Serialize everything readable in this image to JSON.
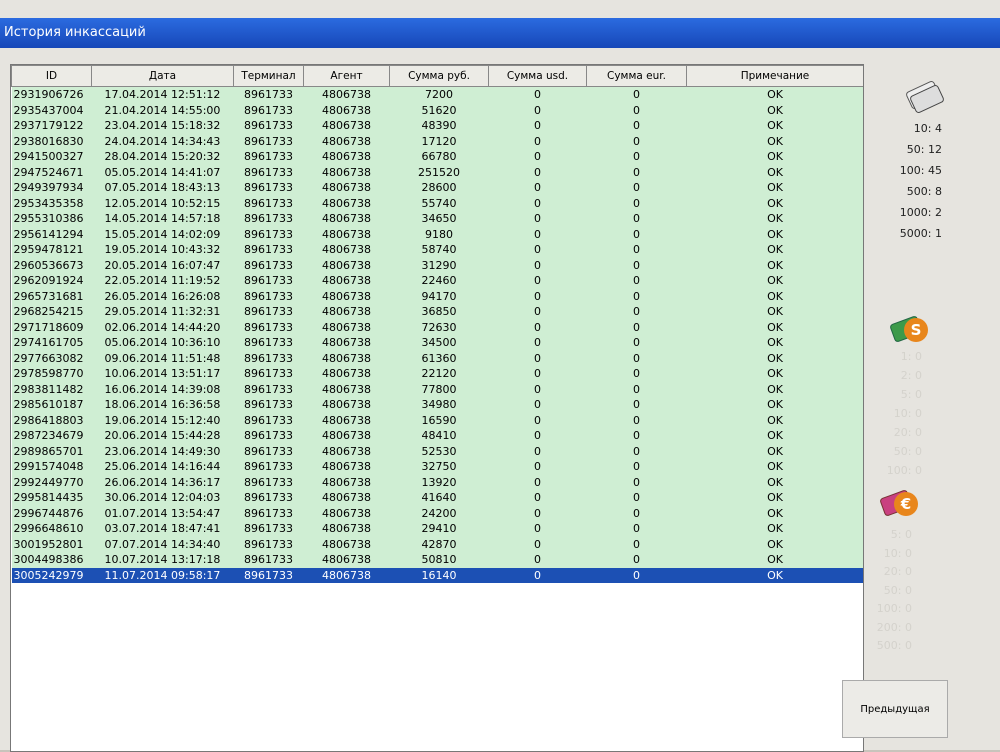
{
  "window": {
    "title": "История инкассаций"
  },
  "table": {
    "headers": [
      "ID",
      "Дата",
      "Терминал",
      "Агент",
      "Сумма руб.",
      "Сумма usd.",
      "Сумма eur.",
      "Примечание"
    ],
    "rows": [
      [
        "2931906726",
        "17.04.2014 12:51:12",
        "8961733",
        "4806738",
        "7200",
        "0",
        "0",
        "OK"
      ],
      [
        "2935437004",
        "21.04.2014 14:55:00",
        "8961733",
        "4806738",
        "51620",
        "0",
        "0",
        "OK"
      ],
      [
        "2937179122",
        "23.04.2014 15:18:32",
        "8961733",
        "4806738",
        "48390",
        "0",
        "0",
        "OK"
      ],
      [
        "2938016830",
        "24.04.2014 14:34:43",
        "8961733",
        "4806738",
        "17120",
        "0",
        "0",
        "OK"
      ],
      [
        "2941500327",
        "28.04.2014 15:20:32",
        "8961733",
        "4806738",
        "66780",
        "0",
        "0",
        "OK"
      ],
      [
        "2947524671",
        "05.05.2014 14:41:07",
        "8961733",
        "4806738",
        "251520",
        "0",
        "0",
        "OK"
      ],
      [
        "2949397934",
        "07.05.2014 18:43:13",
        "8961733",
        "4806738",
        "28600",
        "0",
        "0",
        "OK"
      ],
      [
        "2953435358",
        "12.05.2014 10:52:15",
        "8961733",
        "4806738",
        "55740",
        "0",
        "0",
        "OK"
      ],
      [
        "2955310386",
        "14.05.2014 14:57:18",
        "8961733",
        "4806738",
        "34650",
        "0",
        "0",
        "OK"
      ],
      [
        "2956141294",
        "15.05.2014 14:02:09",
        "8961733",
        "4806738",
        "9180",
        "0",
        "0",
        "OK"
      ],
      [
        "2959478121",
        "19.05.2014 10:43:32",
        "8961733",
        "4806738",
        "58740",
        "0",
        "0",
        "OK"
      ],
      [
        "2960536673",
        "20.05.2014 16:07:47",
        "8961733",
        "4806738",
        "31290",
        "0",
        "0",
        "OK"
      ],
      [
        "2962091924",
        "22.05.2014 11:19:52",
        "8961733",
        "4806738",
        "22460",
        "0",
        "0",
        "OK"
      ],
      [
        "2965731681",
        "26.05.2014 16:26:08",
        "8961733",
        "4806738",
        "94170",
        "0",
        "0",
        "OK"
      ],
      [
        "2968254215",
        "29.05.2014 11:32:31",
        "8961733",
        "4806738",
        "36850",
        "0",
        "0",
        "OK"
      ],
      [
        "2971718609",
        "02.06.2014 14:44:20",
        "8961733",
        "4806738",
        "72630",
        "0",
        "0",
        "OK"
      ],
      [
        "2974161705",
        "05.06.2014 10:36:10",
        "8961733",
        "4806738",
        "34500",
        "0",
        "0",
        "OK"
      ],
      [
        "2977663082",
        "09.06.2014 11:51:48",
        "8961733",
        "4806738",
        "61360",
        "0",
        "0",
        "OK"
      ],
      [
        "2978598770",
        "10.06.2014 13:51:17",
        "8961733",
        "4806738",
        "22120",
        "0",
        "0",
        "OK"
      ],
      [
        "2983811482",
        "16.06.2014 14:39:08",
        "8961733",
        "4806738",
        "77800",
        "0",
        "0",
        "OK"
      ],
      [
        "2985610187",
        "18.06.2014 16:36:58",
        "8961733",
        "4806738",
        "34980",
        "0",
        "0",
        "OK"
      ],
      [
        "2986418803",
        "19.06.2014 15:12:40",
        "8961733",
        "4806738",
        "16590",
        "0",
        "0",
        "OK"
      ],
      [
        "2987234679",
        "20.06.2014 15:44:28",
        "8961733",
        "4806738",
        "48410",
        "0",
        "0",
        "OK"
      ],
      [
        "2989865701",
        "23.06.2014 14:49:30",
        "8961733",
        "4806738",
        "52530",
        "0",
        "0",
        "OK"
      ],
      [
        "2991574048",
        "25.06.2014 14:16:44",
        "8961733",
        "4806738",
        "32750",
        "0",
        "0",
        "OK"
      ],
      [
        "2992449770",
        "26.06.2014 14:36:17",
        "8961733",
        "4806738",
        "13920",
        "0",
        "0",
        "OK"
      ],
      [
        "2995814435",
        "30.06.2014 12:04:03",
        "8961733",
        "4806738",
        "41640",
        "0",
        "0",
        "OK"
      ],
      [
        "2996744876",
        "01.07.2014 13:54:47",
        "8961733",
        "4806738",
        "24200",
        "0",
        "0",
        "OK"
      ],
      [
        "2996648610",
        "03.07.2014 18:47:41",
        "8961733",
        "4806738",
        "29410",
        "0",
        "0",
        "OK"
      ],
      [
        "3001952801",
        "07.07.2014 14:34:40",
        "8961733",
        "4806738",
        "42870",
        "0",
        "0",
        "OK"
      ],
      [
        "3004498386",
        "10.07.2014 13:17:18",
        "8961733",
        "4806738",
        "50810",
        "0",
        "0",
        "OK"
      ],
      [
        "3005242979",
        "11.07.2014 09:58:17",
        "8961733",
        "4806738",
        "16140",
        "0",
        "0",
        "OK"
      ]
    ]
  },
  "side_panel": {
    "rub": [
      "10: 4",
      "50: 12",
      "100: 45",
      "500: 8",
      "1000: 2",
      "5000: 1"
    ],
    "usd": [
      "1: 0",
      "2: 0",
      "5: 0",
      "10: 0",
      "20: 0",
      "50: 0",
      "100: 0"
    ],
    "eur": [
      "5: 0",
      "10: 0",
      "20: 0",
      "50: 0",
      "100: 0",
      "200: 0",
      "500: 0"
    ]
  },
  "buttons": {
    "previous": "Предыдущая"
  }
}
